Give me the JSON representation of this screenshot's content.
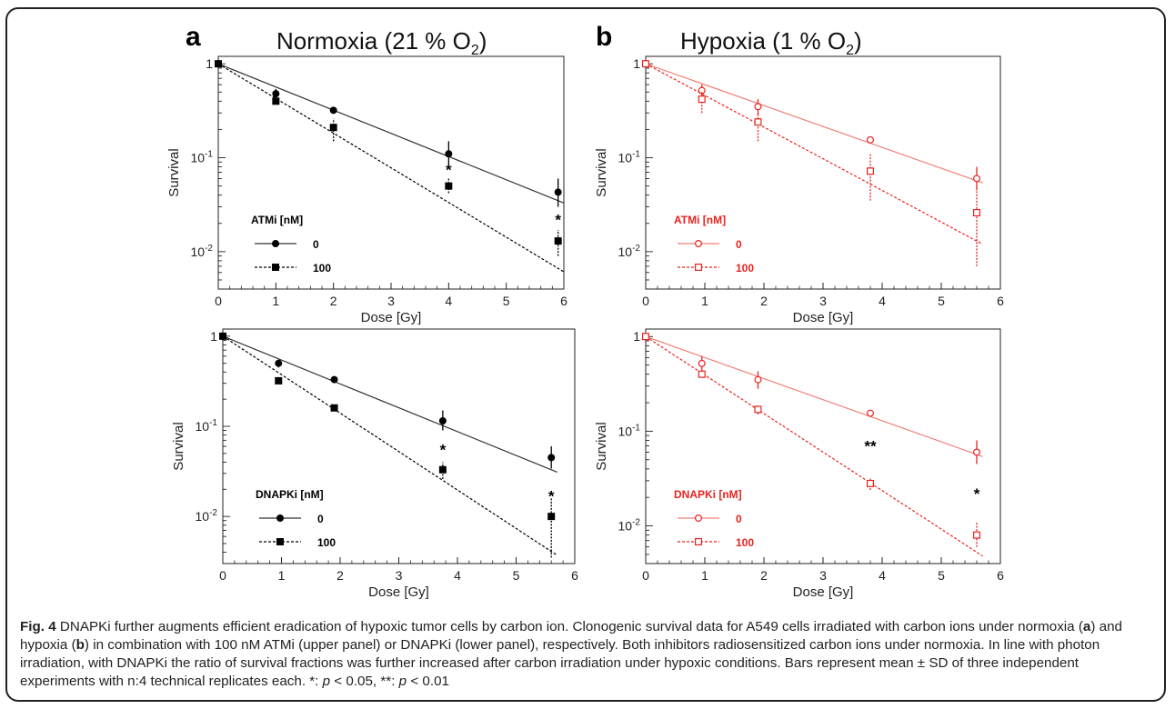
{
  "panels": {
    "a": {
      "letter": "a",
      "title_main": "Normoxia (21 % O",
      "title_sub": "2",
      "title_end": ")"
    },
    "b": {
      "letter": "b",
      "title_main": "Hypoxia (1 % O",
      "title_sub": "2",
      "title_end": ")"
    }
  },
  "colors": {
    "normoxia": "#000000",
    "hypoxia": "#e8231f",
    "hypoxia_legend": "#e8231f"
  },
  "chart_data": [
    {
      "id": "a-atmi",
      "type": "scatter",
      "yscale": "log",
      "xlabel": "Dose [Gy]",
      "ylabel": "Survival",
      "xlim": [
        0,
        6
      ],
      "ylim": [
        0.004,
        1.2
      ],
      "xticks": [
        0,
        1,
        2,
        3,
        4,
        5,
        6
      ],
      "yticks": [
        {
          "v": 1,
          "l": "1"
        },
        {
          "v": 0.1,
          "l": "10^-1"
        },
        {
          "v": 0.01,
          "l": "10^-2"
        }
      ],
      "legend_title": "ATMi [nM]",
      "series": [
        {
          "name": "0",
          "marker": "circle",
          "filled": true,
          "dashed": false,
          "x": [
            0,
            1,
            2,
            4,
            5.9
          ],
          "y": [
            1.0,
            0.48,
            0.32,
            0.11,
            0.043
          ],
          "err_lo": [
            1.0,
            0.42,
            0.3,
            0.08,
            0.03
          ],
          "err_hi": [
            1.0,
            0.54,
            0.34,
            0.15,
            0.06
          ],
          "fit": [
            [
              0,
              1.0
            ],
            [
              6,
              0.033
            ]
          ]
        },
        {
          "name": "100",
          "marker": "square",
          "filled": true,
          "dashed": true,
          "x": [
            0,
            1,
            2,
            4,
            5.9
          ],
          "y": [
            1.0,
            0.4,
            0.21,
            0.05,
            0.013
          ],
          "err_lo": [
            1.0,
            0.38,
            0.15,
            0.042,
            0.009
          ],
          "err_hi": [
            1.0,
            0.42,
            0.26,
            0.06,
            0.017
          ],
          "fit": [
            [
              0,
              1.0
            ],
            [
              6,
              0.0061
            ]
          ]
        }
      ],
      "annotations": [
        {
          "x": 4,
          "y": 0.075,
          "text": "*"
        },
        {
          "x": 5.9,
          "y": 0.022,
          "text": "*"
        }
      ]
    },
    {
      "id": "b-atmi",
      "type": "scatter",
      "yscale": "log",
      "xlabel": "Dose [Gy]",
      "ylabel": "Survival",
      "xlim": [
        0,
        6
      ],
      "ylim": [
        0.004,
        1.2
      ],
      "xticks": [
        0,
        1,
        2,
        3,
        4,
        5,
        6
      ],
      "yticks": [
        {
          "v": 1,
          "l": "1"
        },
        {
          "v": 0.1,
          "l": "10^-1"
        },
        {
          "v": 0.01,
          "l": "10^-2"
        }
      ],
      "legend_title": "ATMi [nM]",
      "series": [
        {
          "name": "0",
          "marker": "circle",
          "filled": false,
          "dashed": false,
          "x": [
            0,
            0.95,
            1.9,
            3.8,
            5.6
          ],
          "y": [
            1.0,
            0.52,
            0.35,
            0.155,
            0.06
          ],
          "err_lo": [
            1.0,
            0.45,
            0.28,
            0.145,
            0.045
          ],
          "err_hi": [
            1.0,
            0.6,
            0.42,
            0.165,
            0.08
          ],
          "fit": [
            [
              0,
              1.0
            ],
            [
              5.7,
              0.054
            ]
          ]
        },
        {
          "name": "100",
          "marker": "square",
          "filled": false,
          "dashed": true,
          "x": [
            0,
            0.95,
            1.9,
            3.8,
            5.6
          ],
          "y": [
            1.0,
            0.42,
            0.24,
            0.072,
            0.026
          ],
          "err_lo": [
            1.0,
            0.3,
            0.15,
            0.035,
            0.007
          ],
          "err_hi": [
            1.0,
            0.5,
            0.3,
            0.11,
            0.045
          ],
          "fit": [
            [
              0,
              1.0
            ],
            [
              5.7,
              0.012
            ]
          ]
        }
      ],
      "annotations": []
    },
    {
      "id": "a-dnapki",
      "type": "scatter",
      "yscale": "log",
      "xlabel": "Dose [Gy]",
      "ylabel": "Survival",
      "xlim": [
        0,
        6
      ],
      "ylim": [
        0.003,
        1.2
      ],
      "xticks": [
        0,
        1,
        2,
        3,
        4,
        5,
        6
      ],
      "yticks": [
        {
          "v": 1,
          "l": "1"
        },
        {
          "v": 0.1,
          "l": "10^-1"
        },
        {
          "v": 0.01,
          "l": "10^-2"
        }
      ],
      "legend_title": "DNAPKi [nM]",
      "series": [
        {
          "name": "0",
          "marker": "circle",
          "filled": true,
          "dashed": false,
          "x": [
            0,
            0.95,
            1.9,
            3.75,
            5.6
          ],
          "y": [
            1.0,
            0.5,
            0.33,
            0.115,
            0.045
          ],
          "err_lo": [
            1.0,
            0.45,
            0.31,
            0.09,
            0.034
          ],
          "err_hi": [
            1.0,
            0.55,
            0.35,
            0.15,
            0.06
          ],
          "fit": [
            [
              0,
              1.0
            ],
            [
              5.7,
              0.031
            ]
          ]
        },
        {
          "name": "100",
          "marker": "square",
          "filled": true,
          "dashed": true,
          "x": [
            0,
            0.95,
            1.9,
            3.75,
            5.6
          ],
          "y": [
            1.0,
            0.32,
            0.16,
            0.033,
            0.01
          ],
          "err_lo": [
            1.0,
            0.3,
            0.15,
            0.026,
            0.0035
          ],
          "err_hi": [
            1.0,
            0.34,
            0.17,
            0.04,
            0.016
          ],
          "fit": [
            [
              0,
              1.0
            ],
            [
              5.7,
              0.0037
            ]
          ]
        }
      ],
      "annotations": [
        {
          "x": 3.75,
          "y": 0.055,
          "text": "*"
        },
        {
          "x": 5.6,
          "y": 0.017,
          "text": "*"
        }
      ]
    },
    {
      "id": "b-dnapki",
      "type": "scatter",
      "yscale": "log",
      "xlabel": "Dose [Gy]",
      "ylabel": "Survival",
      "xlim": [
        0,
        6
      ],
      "ylim": [
        0.004,
        1.2
      ],
      "xticks": [
        0,
        1,
        2,
        3,
        4,
        5,
        6
      ],
      "yticks": [
        {
          "v": 1,
          "l": "1"
        },
        {
          "v": 0.1,
          "l": "10^-1"
        },
        {
          "v": 0.01,
          "l": "10^-2"
        }
      ],
      "legend_title": "DNAPKi [nM]",
      "series": [
        {
          "name": "0",
          "marker": "circle",
          "filled": false,
          "dashed": false,
          "x": [
            0,
            0.95,
            1.9,
            3.8,
            5.6
          ],
          "y": [
            1.0,
            0.52,
            0.35,
            0.155,
            0.06
          ],
          "err_lo": [
            1.0,
            0.42,
            0.28,
            0.145,
            0.045
          ],
          "err_hi": [
            1.0,
            0.62,
            0.43,
            0.165,
            0.08
          ],
          "fit": [
            [
              0,
              1.0
            ],
            [
              5.7,
              0.054
            ]
          ]
        },
        {
          "name": "100",
          "marker": "square",
          "filled": false,
          "dashed": true,
          "x": [
            0,
            0.95,
            1.9,
            3.8,
            5.6
          ],
          "y": [
            1.0,
            0.4,
            0.17,
            0.028,
            0.008
          ],
          "err_lo": [
            1.0,
            0.37,
            0.15,
            0.024,
            0.006
          ],
          "err_hi": [
            1.0,
            0.43,
            0.19,
            0.032,
            0.011
          ],
          "fit": [
            [
              0,
              1.0
            ],
            [
              5.7,
              0.0048
            ]
          ]
        }
      ],
      "annotations": [
        {
          "x": 3.8,
          "y": 0.07,
          "text": "**"
        },
        {
          "x": 5.6,
          "y": 0.022,
          "text": "*"
        }
      ]
    }
  ],
  "caption": {
    "fig_label": "Fig. 4",
    "t1": " DNAPKi further augments efficient eradication of hypoxic tumor cells by carbon ion. Clonogenic survival data for A549 cells irradiated with carbon ions under normoxia (",
    "a": "a",
    "t2": ") and hypoxia (",
    "b": "b",
    "t3": ") in combination with 100 nM ATMi (upper panel) or DNAPKi (lower panel), respectively. Both inhibitors radiosensitized carbon ions under normoxia. In line with photon irradiation, with DNAPKi the ratio of survival fractions was further increased after carbon irradiation under hypoxic conditions. Bars represent mean ± SD of three independent experiments with n:4 technical replicates each. *: ",
    "p1": "p",
    "t4": " < 0.05, **: ",
    "p2": "p",
    "t5": " < 0.01"
  }
}
